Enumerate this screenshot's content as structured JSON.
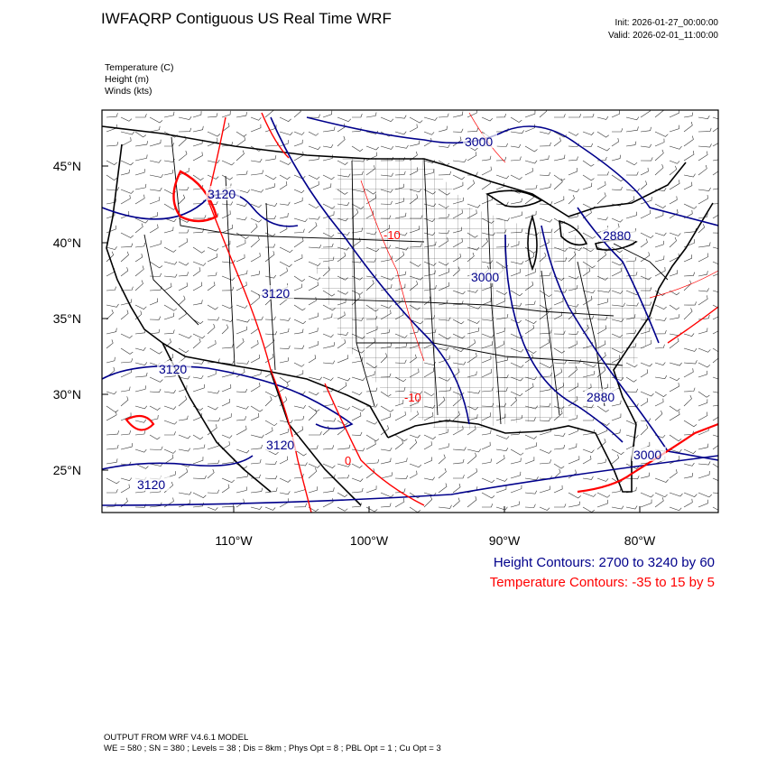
{
  "header": {
    "title": "IWFAQRP Contiguous US Real Time WRF",
    "init": "Init: 2026-01-27_00:00:00",
    "valid": "Valid: 2026-02-01_11:00:00"
  },
  "fields": {
    "temperature": "Temperature   (C)",
    "height": "Height   (m)",
    "winds": "Winds   (kts)"
  },
  "axes": {
    "lat_labels": [
      "45°N",
      "40°N",
      "35°N",
      "30°N",
      "25°N"
    ],
    "lon_labels": [
      "110°W",
      "100°W",
      "90°W",
      "80°W"
    ]
  },
  "contour_labels": {
    "height": [
      "3000",
      "3120",
      "3120",
      "3000",
      "2880",
      "3120",
      "2880",
      "3000",
      "3120",
      "3120"
    ],
    "temperature": [
      "-10",
      "-10",
      "0"
    ]
  },
  "legend": {
    "height": "Height Contours: 2700 to 3240 by 60",
    "temperature": "Temperature Contours: -35 to 15 by 5"
  },
  "colors": {
    "height": "#00008b",
    "temperature": "#ff0000",
    "borders": "#000000"
  },
  "footer": {
    "line1": "OUTPUT FROM WRF V4.6.1 MODEL",
    "line2": "WE = 580 ; SN = 380 ; Levels = 38 ; Dis = 8km ; Phys Opt = 8 ; PBL Opt = 1 ; Cu Opt = 3"
  }
}
